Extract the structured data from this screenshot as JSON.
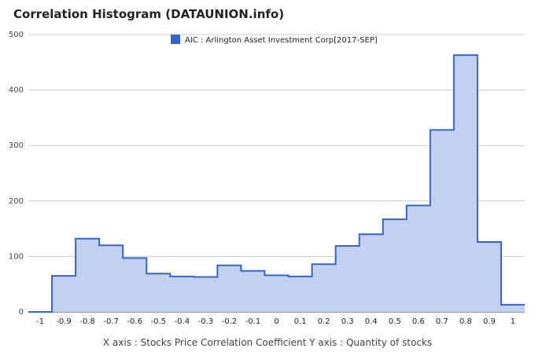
{
  "title": "Correlation Histogram (DATAUNION.info)",
  "footer": "X axis : Stocks Price Correlation Coefficient  Y axis : Quantity of stocks",
  "colors": {
    "line": "#3366cc",
    "fill": "#c4d0f0",
    "grid": "#cccccc",
    "legend_swatch": "#3366cc"
  },
  "chart_data": {
    "type": "area",
    "step": true,
    "legend_position": "top",
    "grid": true,
    "xlim": [
      -1.05,
      1.05
    ],
    "ylim": [
      0,
      500
    ],
    "x_ticks": [
      "-1",
      "-0.9",
      "-0.8",
      "-0.7",
      "-0.6",
      "-0.5",
      "-0.4",
      "-0.3",
      "-0.2",
      "-0.1",
      "0",
      "0.1",
      "0.2",
      "0.3",
      "0.4",
      "0.5",
      "0.6",
      "0.7",
      "0.8",
      "0.9",
      "1"
    ],
    "y_ticks": [
      "0",
      "100",
      "200",
      "300",
      "400",
      "500"
    ],
    "series": [
      {
        "name": "AIC : Arlington Asset Investment Corp[2017-SEP]",
        "x": [
          -1,
          -0.9,
          -0.8,
          -0.7,
          -0.6,
          -0.5,
          -0.4,
          -0.3,
          -0.2,
          -0.1,
          0,
          0.1,
          0.2,
          0.3,
          0.4,
          0.5,
          0.6,
          0.7,
          0.8,
          0.9,
          1
        ],
        "values": [
          0,
          65,
          132,
          120,
          97,
          69,
          64,
          63,
          84,
          74,
          66,
          64,
          86,
          119,
          140,
          167,
          192,
          328,
          463,
          126,
          13
        ]
      }
    ]
  }
}
